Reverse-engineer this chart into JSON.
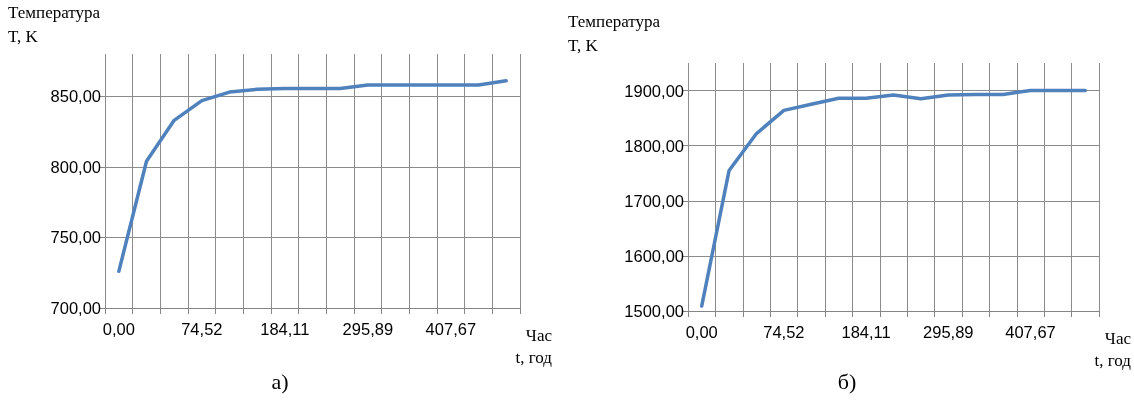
{
  "chart_data": [
    {
      "type": "line",
      "title": "а)",
      "xlabel": "Час\nt, год",
      "ylabel": "Температура\nT, K",
      "categories": [
        "0,00",
        null,
        null,
        "74,52",
        null,
        null,
        "184,11",
        null,
        null,
        "295,89",
        null,
        null,
        "407,67",
        null,
        null
      ],
      "series": [
        {
          "color": "#4f81bd",
          "values": [
            726,
            804,
            833,
            847,
            853,
            855,
            855.5,
            855.5,
            855.5,
            858,
            858,
            858,
            858,
            858,
            861
          ]
        }
      ],
      "ylim": [
        700,
        880
      ],
      "yticks": [
        {
          "value": 700,
          "label": "700,00"
        },
        {
          "value": 750,
          "label": "750,00"
        },
        {
          "value": 800,
          "label": "800,00"
        },
        {
          "value": 850,
          "label": "850,00"
        }
      ],
      "grid": true,
      "marker": "none",
      "line_style": "solid"
    },
    {
      "type": "line",
      "title": "б)",
      "xlabel": "Час\nt, год",
      "ylabel": "Температура\nT, K",
      "categories": [
        "0,00",
        null,
        null,
        "74,52",
        null,
        null,
        "184,11",
        null,
        null,
        "295,89",
        null,
        null,
        "407,67",
        null,
        null
      ],
      "series": [
        {
          "color": "#4f81bd",
          "values": [
            1509,
            1755,
            1822,
            1864,
            1875,
            1886,
            1886,
            1892,
            1885,
            1892,
            1893,
            1893,
            1900,
            1900,
            1900
          ]
        }
      ],
      "ylim": [
        1500,
        1950
      ],
      "yticks": [
        {
          "value": 1500,
          "label": "1500,00"
        },
        {
          "value": 1600,
          "label": "1600,00"
        },
        {
          "value": 1700,
          "label": "1700,00"
        },
        {
          "value": 1800,
          "label": "1800,00"
        },
        {
          "value": 1900,
          "label": "1900,00"
        }
      ],
      "grid": true,
      "marker": "none",
      "line_style": "solid"
    }
  ]
}
